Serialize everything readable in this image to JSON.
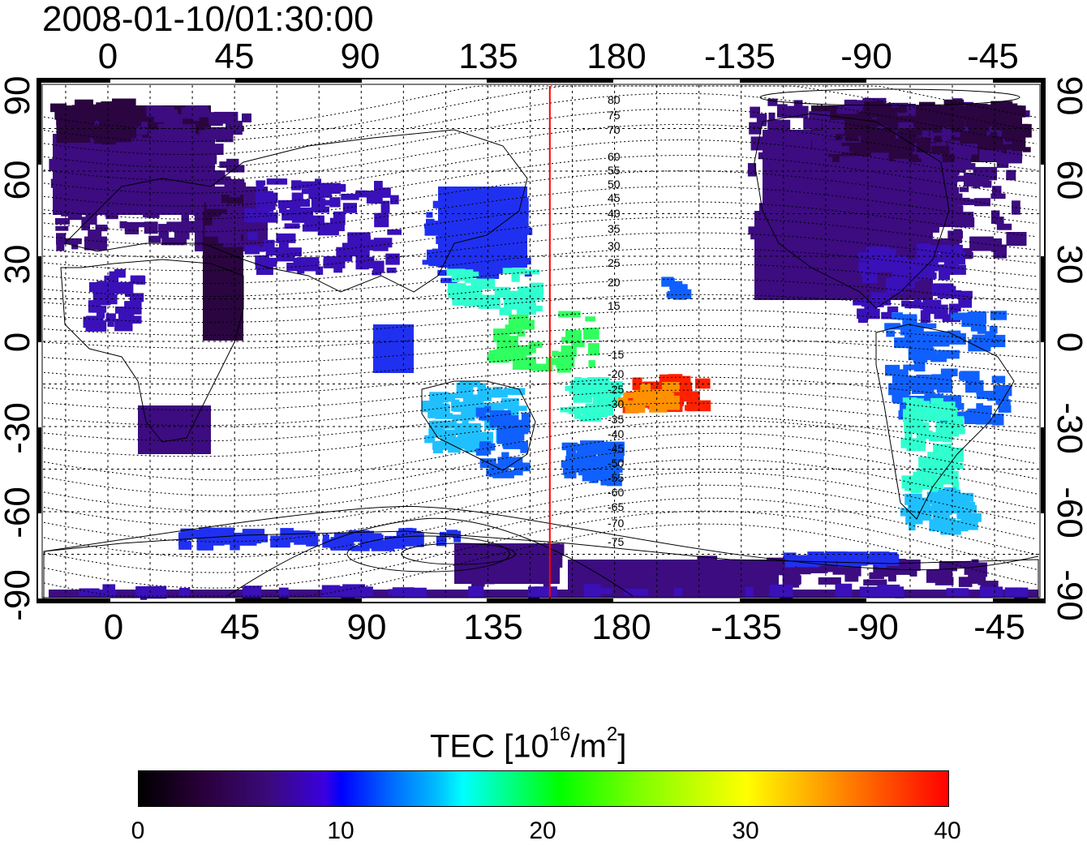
{
  "title": "2008-01-10/01:30:00",
  "top_lon_ticks": [
    "0",
    "45",
    "90",
    "135",
    "180",
    "-135",
    "-90",
    "-45"
  ],
  "bottom_lon_ticks": [
    "0",
    "45",
    "90",
    "135",
    "180",
    "-135",
    "-90",
    "-45"
  ],
  "left_lat_ticks": [
    "90",
    "60",
    "30",
    "0",
    "-30",
    "-60",
    "-90"
  ],
  "right_lat_ticks": [
    "90",
    "60",
    "30",
    "0",
    "-30",
    "-60",
    "-90"
  ],
  "contour_labels_upper": [
    "80",
    "75",
    "70",
    "60",
    "55",
    "50",
    "45",
    "40",
    "35",
    "30",
    "25",
    "20",
    "15"
  ],
  "contour_labels_lower": [
    "-15",
    "-20",
    "-25",
    "-30",
    "-35",
    "-40",
    "-45",
    "-50",
    "-55",
    "-60",
    "-65",
    "-70",
    "-75"
  ],
  "colorbar": {
    "title_prefix": "TEC  [10",
    "title_exp": "16",
    "title_suffix": "/m",
    "title_exp2": "2",
    "title_end": "]",
    "ticks": [
      "0",
      "10",
      "20",
      "30",
      "40"
    ],
    "min": 0,
    "max": 40
  },
  "terminator_line_color": "#ff0000",
  "terminator_longitude": 157
}
